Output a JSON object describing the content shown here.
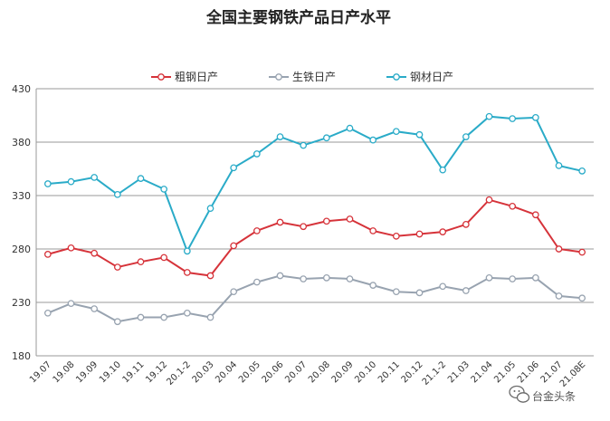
{
  "chart_data": {
    "type": "line",
    "title": "全国主要钢铁产品日产水平",
    "xlabel": "",
    "ylabel": "",
    "ylim": [
      180,
      430
    ],
    "yticks": [
      "180",
      "230",
      "280",
      "330",
      "380",
      "430"
    ],
    "grid": true,
    "legend_position": "top",
    "categories": [
      "19.07",
      "19.08",
      "19.09",
      "19.10",
      "19.11",
      "19.12",
      "20.1-2",
      "20.03",
      "20.04",
      "20.05",
      "20.06",
      "20.07",
      "20.08",
      "20.09",
      "20.10",
      "20.11",
      "20.12",
      "21.1-2",
      "21.03",
      "21.04",
      "21.05",
      "21.06",
      "21.07",
      "21.08E"
    ],
    "series": [
      {
        "name": "粗钢日产",
        "color": "#d6333a",
        "values": [
          275,
          281,
          276,
          263,
          268,
          272,
          258,
          255,
          283,
          297,
          305,
          301,
          306,
          308,
          297,
          292,
          294,
          296,
          303,
          326,
          320,
          312,
          280,
          277
        ]
      },
      {
        "name": "生铁日产",
        "color": "#98a3b0",
        "values": [
          220,
          229,
          224,
          212,
          216,
          216,
          220,
          216,
          240,
          249,
          255,
          252,
          253,
          252,
          246,
          240,
          239,
          245,
          241,
          253,
          252,
          253,
          236,
          234
        ]
      },
      {
        "name": "钢材日产",
        "color": "#2aabc8",
        "values": [
          341,
          343,
          347,
          331,
          346,
          336,
          278,
          318,
          356,
          369,
          385,
          377,
          384,
          393,
          382,
          390,
          387,
          354,
          385,
          404,
          402,
          403,
          358,
          353
        ]
      }
    ]
  },
  "watermark": {
    "text": "台金头条",
    "icon": "wechat-icon"
  }
}
